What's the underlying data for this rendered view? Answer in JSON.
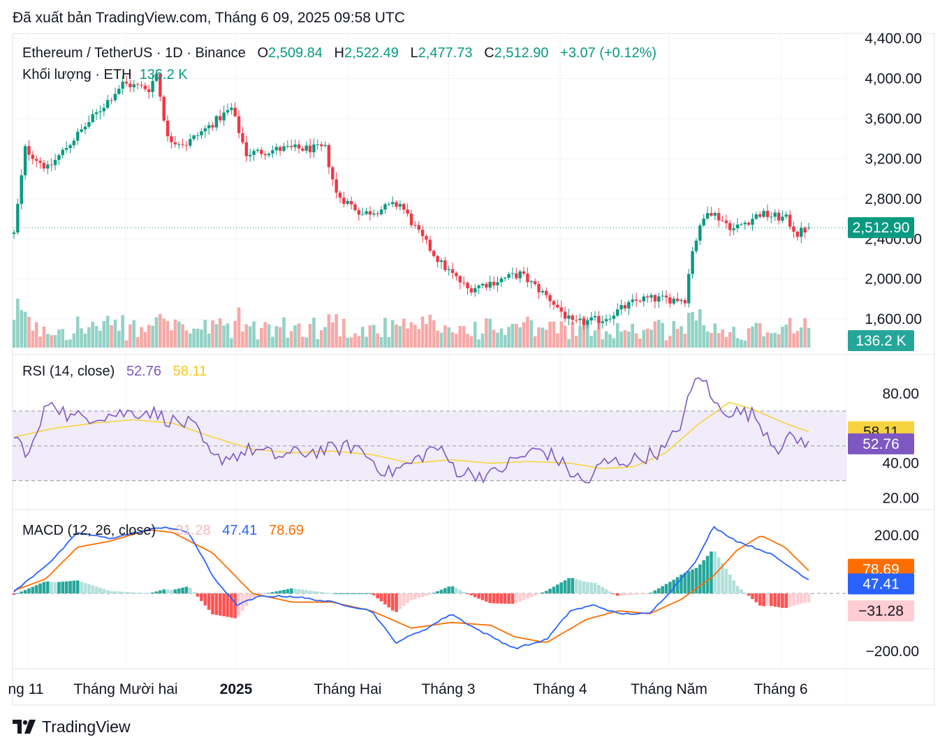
{
  "header": {
    "published": "Đã xuất bản TradingView.com, Tháng 6 09, 2025 09:58 UTC"
  },
  "legend": {
    "symbol": "Ethereum / TetherUS · 1D · Binance",
    "o_label": "O",
    "o_value": "2,509.84",
    "h_label": "H",
    "h_value": "2,522.49",
    "l_label": "L",
    "l_value": "2,477.73",
    "c_label": "C",
    "c_value": "2,512.90",
    "change": "+3.07 (+0.12%)",
    "volume_label": "Khối lượng · ETH",
    "volume_value": "136.2 K",
    "rsi_label": "RSI (14, close)",
    "rsi_value": "52.76",
    "rsi_ma_value": "58.11",
    "macd_label": "MACD (12, 26, close)",
    "macd_hist_value": "−31.28",
    "macd_value": "47.41",
    "macd_signal_value": "78.69"
  },
  "price_axis": [
    "4,400.00",
    "4,000.00",
    "3,600.00",
    "3,200.00",
    "2,800.00",
    "2,400.00",
    "2,000.00",
    "1,600.00"
  ],
  "rsi_axis": [
    "80.00",
    "40.00",
    "20.00"
  ],
  "macd_axis": [
    "200.00",
    "−200.00"
  ],
  "time_axis": [
    "ng 11",
    "Tháng Mười hai",
    "2025",
    "Tháng Hai",
    "Tháng 3",
    "Tháng 4",
    "Tháng Năm",
    "Tháng 6"
  ],
  "badges": {
    "price": "2,512.90",
    "volume": "136.2 K",
    "rsi_ma": "58.11",
    "rsi": "52.76",
    "macd_signal": "78.69",
    "macd": "47.41",
    "macd_hist": "−31.28"
  },
  "brand": {
    "name": "TradingView"
  },
  "colors": {
    "up": "#089981",
    "down": "#f23645",
    "rsi": "#7e57c2",
    "rsi_ma": "#f7d33f",
    "macd": "#2962ff",
    "signal": "#ff6d00",
    "rsi_band": "#f0ecfa"
  },
  "chart_data": [
    {
      "type": "candlestick",
      "title": "Ethereum / TetherUS · 1D · Binance",
      "ylim": [
        1350,
        4450
      ],
      "x_range": [
        "2024-11-09",
        "2025-06-09"
      ],
      "anchors": [
        {
          "x": "2024-11-09",
          "close": 2450
        },
        {
          "x": "2024-11-12",
          "close": 3300
        },
        {
          "x": "2024-11-18",
          "close": 3100
        },
        {
          "x": "2024-11-25",
          "close": 3400
        },
        {
          "x": "2024-12-01",
          "close": 3650
        },
        {
          "x": "2024-12-08",
          "close": 3950
        },
        {
          "x": "2024-12-15",
          "close": 3900
        },
        {
          "x": "2024-12-17",
          "close": 4050
        },
        {
          "x": "2024-12-20",
          "close": 3400
        },
        {
          "x": "2024-12-25",
          "close": 3350
        },
        {
          "x": "2025-01-06",
          "close": 3700
        },
        {
          "x": "2025-01-10",
          "close": 3250
        },
        {
          "x": "2025-01-20",
          "close": 3300
        },
        {
          "x": "2025-01-31",
          "close": 3300
        },
        {
          "x": "2025-02-03",
          "close": 2850
        },
        {
          "x": "2025-02-10",
          "close": 2650
        },
        {
          "x": "2025-02-20",
          "close": 2750
        },
        {
          "x": "2025-02-25",
          "close": 2450
        },
        {
          "x": "2025-03-03",
          "close": 2150
        },
        {
          "x": "2025-03-10",
          "close": 1900
        },
        {
          "x": "2025-03-24",
          "close": 2050
        },
        {
          "x": "2025-04-01",
          "close": 1800
        },
        {
          "x": "2025-04-07",
          "close": 1550
        },
        {
          "x": "2025-04-15",
          "close": 1600
        },
        {
          "x": "2025-04-25",
          "close": 1800
        },
        {
          "x": "2025-05-07",
          "close": 1800
        },
        {
          "x": "2025-05-09",
          "close": 2300
        },
        {
          "x": "2025-05-13",
          "close": 2700
        },
        {
          "x": "2025-05-20",
          "close": 2500
        },
        {
          "x": "2025-05-27",
          "close": 2650
        },
        {
          "x": "2025-06-03",
          "close": 2600
        },
        {
          "x": "2025-06-06",
          "close": 2450
        },
        {
          "x": "2025-06-09",
          "close": 2512.9
        }
      ],
      "last": {
        "open": 2509.84,
        "high": 2522.49,
        "low": 2477.73,
        "close": 2512.9
      },
      "volume_last": "136.2 K"
    },
    {
      "type": "line",
      "title": "RSI (14, close)",
      "ylim": [
        15,
        100
      ],
      "bands": [
        30,
        50,
        70
      ],
      "series": [
        {
          "name": "RSI",
          "last": 52.76,
          "anchors": [
            [
              0,
              55
            ],
            [
              0.02,
              45
            ],
            [
              0.045,
              78
            ],
            [
              0.07,
              66
            ],
            [
              0.12,
              68
            ],
            [
              0.17,
              70
            ],
            [
              0.2,
              64
            ],
            [
              0.225,
              62
            ],
            [
              0.25,
              42
            ],
            [
              0.28,
              45
            ],
            [
              0.3,
              48
            ],
            [
              0.33,
              44
            ],
            [
              0.36,
              46
            ],
            [
              0.4,
              48
            ],
            [
              0.43,
              50
            ],
            [
              0.45,
              42
            ],
            [
              0.47,
              34
            ],
            [
              0.5,
              40
            ],
            [
              0.53,
              50
            ],
            [
              0.56,
              35
            ],
            [
              0.6,
              33
            ],
            [
              0.63,
              42
            ],
            [
              0.66,
              48
            ],
            [
              0.68,
              44
            ],
            [
              0.7,
              35
            ],
            [
              0.72,
              28
            ],
            [
              0.74,
              40
            ],
            [
              0.78,
              42
            ],
            [
              0.82,
              48
            ],
            [
              0.84,
              64
            ],
            [
              0.855,
              85
            ],
            [
              0.865,
              92
            ],
            [
              0.88,
              74
            ],
            [
              0.9,
              70
            ],
            [
              0.93,
              68
            ],
            [
              0.95,
              56
            ],
            [
              0.96,
              48
            ],
            [
              0.97,
              54
            ],
            [
              1,
              52.76
            ]
          ]
        },
        {
          "name": "MA",
          "last": 58.11,
          "anchors": [
            [
              0,
              55
            ],
            [
              0.05,
              60
            ],
            [
              0.1,
              63
            ],
            [
              0.15,
              65
            ],
            [
              0.2,
              63
            ],
            [
              0.25,
              55
            ],
            [
              0.3,
              48
            ],
            [
              0.35,
              46
            ],
            [
              0.4,
              47
            ],
            [
              0.45,
              45
            ],
            [
              0.5,
              40
            ],
            [
              0.55,
              42
            ],
            [
              0.6,
              40
            ],
            [
              0.65,
              41
            ],
            [
              0.7,
              40
            ],
            [
              0.74,
              37
            ],
            [
              0.78,
              38
            ],
            [
              0.82,
              46
            ],
            [
              0.86,
              62
            ],
            [
              0.9,
              75
            ],
            [
              0.93,
              71
            ],
            [
              0.97,
              63
            ],
            [
              1,
              58.11
            ]
          ]
        }
      ]
    },
    {
      "type": "line",
      "title": "MACD (12, 26, close)",
      "ylim": [
        -260,
        280
      ],
      "series": [
        {
          "name": "MACD",
          "last": 47.41,
          "anchors": [
            [
              0,
              5
            ],
            [
              0.05,
              120
            ],
            [
              0.08,
              210
            ],
            [
              0.12,
              190
            ],
            [
              0.17,
              220
            ],
            [
              0.19,
              230
            ],
            [
              0.22,
              210
            ],
            [
              0.25,
              60
            ],
            [
              0.28,
              -40
            ],
            [
              0.31,
              -10
            ],
            [
              0.35,
              -10
            ],
            [
              0.4,
              -30
            ],
            [
              0.45,
              -60
            ],
            [
              0.48,
              -170
            ],
            [
              0.52,
              -120
            ],
            [
              0.55,
              -70
            ],
            [
              0.58,
              -120
            ],
            [
              0.63,
              -190
            ],
            [
              0.67,
              -160
            ],
            [
              0.7,
              -60
            ],
            [
              0.73,
              -40
            ],
            [
              0.76,
              -70
            ],
            [
              0.8,
              -70
            ],
            [
              0.83,
              20
            ],
            [
              0.86,
              120
            ],
            [
              0.88,
              230
            ],
            [
              0.91,
              180
            ],
            [
              0.95,
              140
            ],
            [
              1,
              47.41
            ]
          ]
        },
        {
          "name": "Signal",
          "last": 78.69,
          "anchors": [
            [
              0,
              10
            ],
            [
              0.04,
              50
            ],
            [
              0.08,
              160
            ],
            [
              0.12,
              180
            ],
            [
              0.17,
              220
            ],
            [
              0.2,
              210
            ],
            [
              0.25,
              140
            ],
            [
              0.3,
              0
            ],
            [
              0.35,
              -30
            ],
            [
              0.4,
              -30
            ],
            [
              0.45,
              -60
            ],
            [
              0.5,
              -120
            ],
            [
              0.55,
              -100
            ],
            [
              0.6,
              -110
            ],
            [
              0.63,
              -150
            ],
            [
              0.67,
              -170
            ],
            [
              0.72,
              -90
            ],
            [
              0.76,
              -60
            ],
            [
              0.8,
              -70
            ],
            [
              0.84,
              -20
            ],
            [
              0.88,
              60
            ],
            [
              0.91,
              150
            ],
            [
              0.94,
              200
            ],
            [
              0.97,
              160
            ],
            [
              1,
              78.69
            ]
          ]
        }
      ],
      "histogram_last": -31.28
    }
  ]
}
